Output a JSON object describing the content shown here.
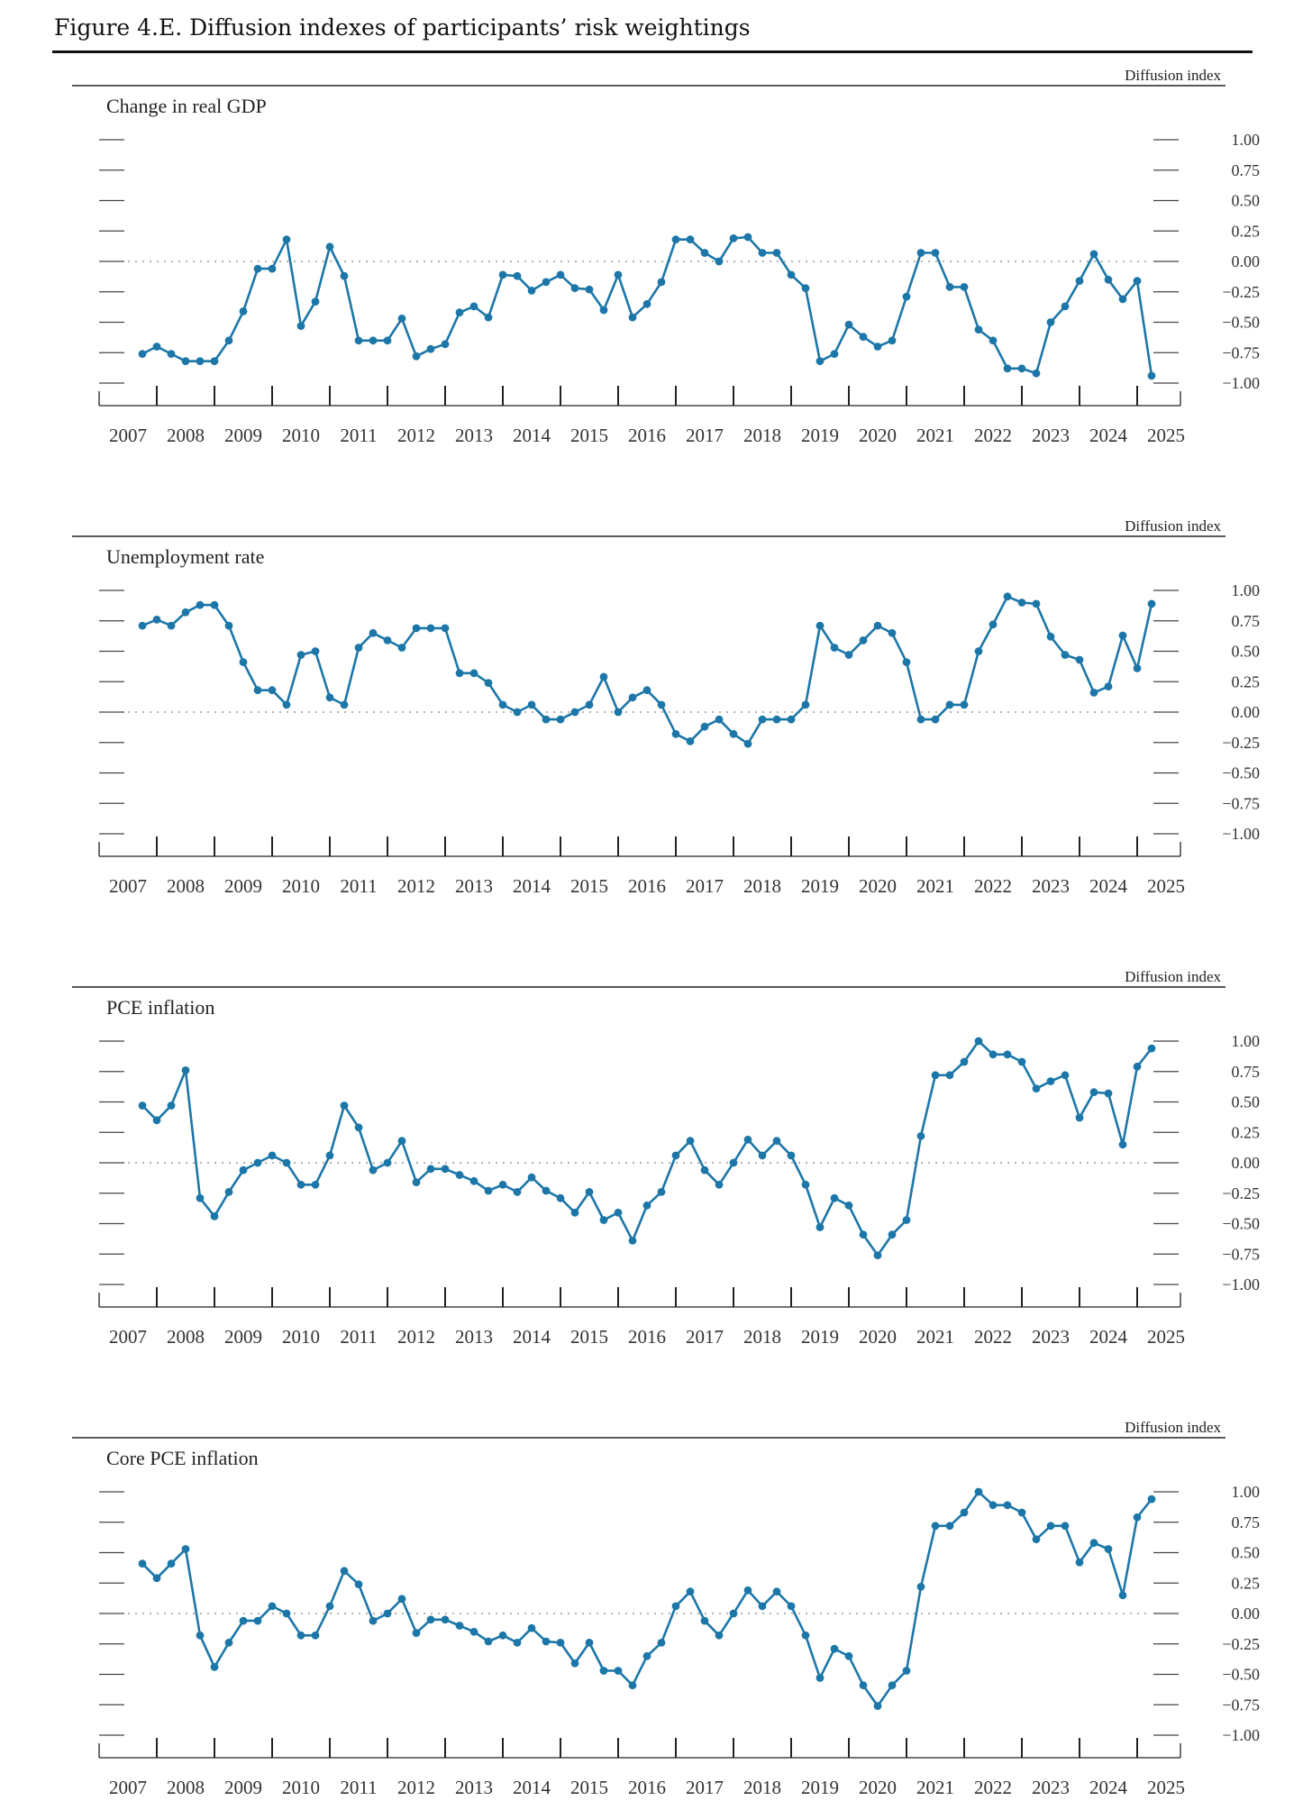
{
  "figure": {
    "title": "Figure 4.E. Diffusion indexes of participants’ risk weightings"
  },
  "chart_data": [
    {
      "type": "line",
      "title": "Change in real GDP",
      "ylabel": "Diffusion index",
      "ylim": [
        -1.0,
        1.0
      ],
      "yticks": [
        "1.00",
        "0.75",
        "0.50",
        "0.25",
        "0.00",
        "−0.25",
        "−0.50",
        "−0.75",
        "−1.00"
      ],
      "xticks": [
        "2007",
        "2008",
        "2009",
        "2010",
        "2011",
        "2012",
        "2013",
        "2014",
        "2015",
        "2016",
        "2017",
        "2018",
        "2019",
        "2020",
        "2021",
        "2022",
        "2023",
        "2024",
        "2025"
      ],
      "x_start": 2007.75,
      "x_step": 0.25,
      "series": [
        {
          "name": "Change in real GDP",
          "color": "#1c77a8",
          "values": [
            -0.76,
            -0.7,
            -0.76,
            -0.82,
            -0.82,
            -0.82,
            -0.65,
            -0.41,
            -0.06,
            -0.06,
            0.18,
            -0.53,
            -0.33,
            0.12,
            -0.12,
            -0.65,
            -0.65,
            -0.65,
            -0.47,
            -0.78,
            -0.72,
            -0.68,
            -0.42,
            -0.37,
            -0.46,
            -0.11,
            -0.12,
            -0.24,
            -0.17,
            -0.11,
            -0.22,
            -0.23,
            -0.4,
            -0.11,
            -0.46,
            -0.35,
            -0.17,
            0.18,
            0.18,
            0.07,
            0.0,
            0.19,
            0.2,
            0.07,
            0.07,
            -0.11,
            -0.22,
            -0.82,
            -0.76,
            -0.52,
            -0.62,
            -0.7,
            -0.65,
            -0.29,
            0.07,
            0.07,
            -0.21,
            -0.21,
            -0.56,
            -0.65,
            -0.88,
            -0.88,
            -0.92,
            -0.5,
            -0.37,
            -0.16,
            0.06,
            -0.15,
            -0.31,
            -0.16,
            -0.94
          ]
        }
      ]
    },
    {
      "type": "line",
      "title": "Unemployment rate",
      "ylabel": "Diffusion index",
      "ylim": [
        -1.0,
        1.0
      ],
      "yticks": [
        "1.00",
        "0.75",
        "0.50",
        "0.25",
        "0.00",
        "−0.25",
        "−0.50",
        "−0.75",
        "−1.00"
      ],
      "xticks": [
        "2007",
        "2008",
        "2009",
        "2010",
        "2011",
        "2012",
        "2013",
        "2014",
        "2015",
        "2016",
        "2017",
        "2018",
        "2019",
        "2020",
        "2021",
        "2022",
        "2023",
        "2024",
        "2025"
      ],
      "x_start": 2007.75,
      "x_step": 0.25,
      "series": [
        {
          "name": "Unemployment rate",
          "color": "#1c77a8",
          "values": [
            0.71,
            0.76,
            0.71,
            0.82,
            0.88,
            0.88,
            0.71,
            0.41,
            0.18,
            0.18,
            0.06,
            0.47,
            0.5,
            0.12,
            0.06,
            0.53,
            0.65,
            0.59,
            0.53,
            0.69,
            0.69,
            0.69,
            0.32,
            0.32,
            0.24,
            0.06,
            0.0,
            0.06,
            -0.06,
            -0.06,
            0.0,
            0.06,
            0.29,
            0.0,
            0.12,
            0.18,
            0.06,
            -0.18,
            -0.24,
            -0.12,
            -0.06,
            -0.18,
            -0.26,
            -0.06,
            -0.06,
            -0.06,
            0.06,
            0.71,
            0.53,
            0.47,
            0.59,
            0.71,
            0.65,
            0.41,
            -0.06,
            -0.06,
            0.06,
            0.06,
            0.5,
            0.72,
            0.95,
            0.9,
            0.89,
            0.62,
            0.47,
            0.43,
            0.16,
            0.21,
            0.63,
            0.36,
            0.89
          ]
        }
      ]
    },
    {
      "type": "line",
      "title": "PCE inflation",
      "ylabel": "Diffusion index",
      "ylim": [
        -1.0,
        1.0
      ],
      "yticks": [
        "1.00",
        "0.75",
        "0.50",
        "0.25",
        "0.00",
        "−0.25",
        "−0.50",
        "−0.75",
        "−1.00"
      ],
      "xticks": [
        "2007",
        "2008",
        "2009",
        "2010",
        "2011",
        "2012",
        "2013",
        "2014",
        "2015",
        "2016",
        "2017",
        "2018",
        "2019",
        "2020",
        "2021",
        "2022",
        "2023",
        "2024",
        "2025"
      ],
      "x_start": 2007.75,
      "x_step": 0.25,
      "series": [
        {
          "name": "PCE inflation",
          "color": "#1c77a8",
          "values": [
            0.47,
            0.35,
            0.47,
            0.76,
            -0.29,
            -0.44,
            -0.24,
            -0.06,
            0.0,
            0.06,
            0.0,
            -0.18,
            -0.18,
            0.06,
            0.47,
            0.29,
            -0.06,
            0.0,
            0.18,
            -0.16,
            -0.05,
            -0.05,
            -0.1,
            -0.15,
            -0.23,
            -0.18,
            -0.24,
            -0.12,
            -0.23,
            -0.29,
            -0.41,
            -0.24,
            -0.47,
            -0.41,
            -0.64,
            -0.35,
            -0.24,
            0.06,
            0.18,
            -0.06,
            -0.18,
            0.0,
            0.19,
            0.06,
            0.18,
            0.06,
            -0.18,
            -0.53,
            -0.29,
            -0.35,
            -0.59,
            -0.76,
            -0.59,
            -0.47,
            0.22,
            0.72,
            0.72,
            0.83,
            1.0,
            0.89,
            0.89,
            0.83,
            0.61,
            0.67,
            0.72,
            0.37,
            0.58,
            0.57,
            0.15,
            0.79,
            0.94
          ]
        }
      ]
    },
    {
      "type": "line",
      "title": "Core PCE inflation",
      "ylabel": "Diffusion index",
      "ylim": [
        -1.0,
        1.0
      ],
      "yticks": [
        "1.00",
        "0.75",
        "0.50",
        "0.25",
        "0.00",
        "−0.25",
        "−0.50",
        "−0.75",
        "−1.00"
      ],
      "xticks": [
        "2007",
        "2008",
        "2009",
        "2010",
        "2011",
        "2012",
        "2013",
        "2014",
        "2015",
        "2016",
        "2017",
        "2018",
        "2019",
        "2020",
        "2021",
        "2022",
        "2023",
        "2024",
        "2025"
      ],
      "x_start": 2007.75,
      "x_step": 0.25,
      "series": [
        {
          "name": "Core PCE inflation",
          "color": "#1c77a8",
          "values": [
            0.41,
            0.29,
            0.41,
            0.53,
            -0.18,
            -0.44,
            -0.24,
            -0.06,
            -0.06,
            0.06,
            0.0,
            -0.18,
            -0.18,
            0.06,
            0.35,
            0.24,
            -0.06,
            0.0,
            0.12,
            -0.16,
            -0.05,
            -0.05,
            -0.1,
            -0.15,
            -0.23,
            -0.18,
            -0.24,
            -0.12,
            -0.23,
            -0.24,
            -0.41,
            -0.24,
            -0.47,
            -0.47,
            -0.59,
            -0.35,
            -0.24,
            0.06,
            0.18,
            -0.06,
            -0.18,
            0.0,
            0.19,
            0.06,
            0.18,
            0.06,
            -0.18,
            -0.53,
            -0.29,
            -0.35,
            -0.59,
            -0.76,
            -0.59,
            -0.47,
            0.22,
            0.72,
            0.72,
            0.83,
            1.0,
            0.89,
            0.89,
            0.83,
            0.61,
            0.72,
            0.72,
            0.42,
            0.58,
            0.53,
            0.15,
            0.79,
            0.94
          ]
        }
      ]
    }
  ]
}
